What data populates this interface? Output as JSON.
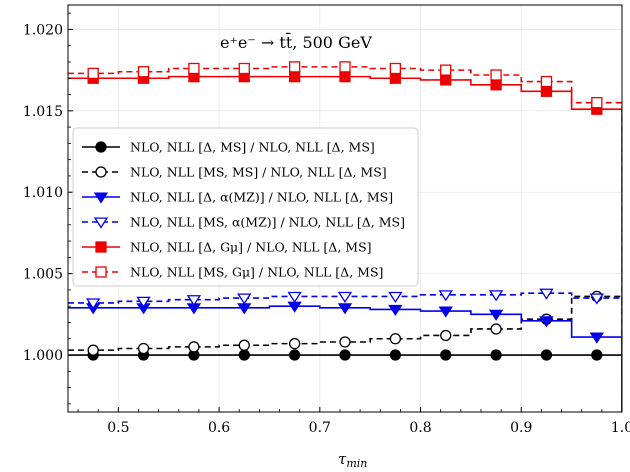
{
  "chart_data": {
    "type": "line",
    "title": "",
    "annotation": "e⁺e⁻ → tt̄, 500 GeV",
    "xlabel": "τmin",
    "xlabel_main": "τ",
    "xlabel_sub": "min",
    "ylabel": "",
    "xlim": [
      0.45,
      1.0
    ],
    "ylim": [
      0.9965,
      1.0215
    ],
    "xticks": [
      0.5,
      0.6,
      0.7,
      0.8,
      0.9,
      1.0
    ],
    "xtick_labels": [
      "0.5",
      "0.6",
      "0.7",
      "0.8",
      "0.9",
      "1.0"
    ],
    "yticks": [
      1.0,
      1.005,
      1.01,
      1.015,
      1.02
    ],
    "ytick_labels": [
      "1.000",
      "1.005",
      "1.010",
      "1.015",
      "1.020"
    ],
    "grid": true,
    "legend_position": "center-left",
    "x": [
      0.475,
      0.525,
      0.575,
      0.625,
      0.675,
      0.725,
      0.775,
      0.825,
      0.875,
      0.925,
      0.975
    ],
    "bin_edges": [
      0.45,
      0.5,
      0.55,
      0.6,
      0.65,
      0.7,
      0.75,
      0.8,
      0.85,
      0.9,
      0.95,
      1.0
    ],
    "series": [
      {
        "name": "NLO, NLL [Δ, MS] / NLO, NLL [Δ, MS]",
        "color": "#000000",
        "linestyle": "solid",
        "marker": "circle",
        "filled": true,
        "values": [
          1.0,
          1.0,
          1.0,
          1.0,
          1.0,
          1.0,
          1.0,
          1.0,
          1.0,
          1.0,
          1.0
        ]
      },
      {
        "name": "NLO, NLL [MS, MS] / NLO, NLL [Δ, MS]",
        "color": "#000000",
        "linestyle": "dashed",
        "marker": "circle",
        "filled": false,
        "values": [
          1.0003,
          1.0004,
          1.0005,
          1.0006,
          1.0007,
          1.0008,
          1.001,
          1.0012,
          1.0016,
          1.0022,
          1.0036
        ]
      },
      {
        "name": "NLO, NLL [Δ, α(MZ)] / NLO, NLL [Δ, MS]",
        "color": "#0000ee",
        "linestyle": "solid",
        "marker": "triangle-down",
        "filled": true,
        "values": [
          1.0029,
          1.0029,
          1.0029,
          1.0029,
          1.003,
          1.0029,
          1.0028,
          1.0027,
          1.0025,
          1.0021,
          1.0011
        ]
      },
      {
        "name": "NLO, NLL [MS, α(MZ)] / NLO, NLL [Δ, MS]",
        "color": "#0000ee",
        "linestyle": "dashed",
        "marker": "triangle-down",
        "filled": false,
        "values": [
          1.0032,
          1.0033,
          1.0034,
          1.0035,
          1.0036,
          1.0036,
          1.0036,
          1.0037,
          1.0037,
          1.0038,
          1.0035
        ]
      },
      {
        "name": "NLO, NLL [Δ, Gμ] / NLO, NLL [Δ, MS]",
        "color": "#ee0000",
        "linestyle": "solid",
        "marker": "square",
        "filled": true,
        "values": [
          1.017,
          1.017,
          1.0171,
          1.0171,
          1.0171,
          1.0171,
          1.017,
          1.0169,
          1.0166,
          1.0162,
          1.0151
        ]
      },
      {
        "name": "NLO, NLL [MS, Gμ] / NLO, NLL [Δ, MS]",
        "color": "#ee0000",
        "linestyle": "dashed",
        "marker": "square",
        "filled": false,
        "values": [
          1.0173,
          1.0174,
          1.0176,
          1.0176,
          1.0177,
          1.0177,
          1.0176,
          1.0175,
          1.0172,
          1.0168,
          1.0155
        ]
      }
    ]
  }
}
